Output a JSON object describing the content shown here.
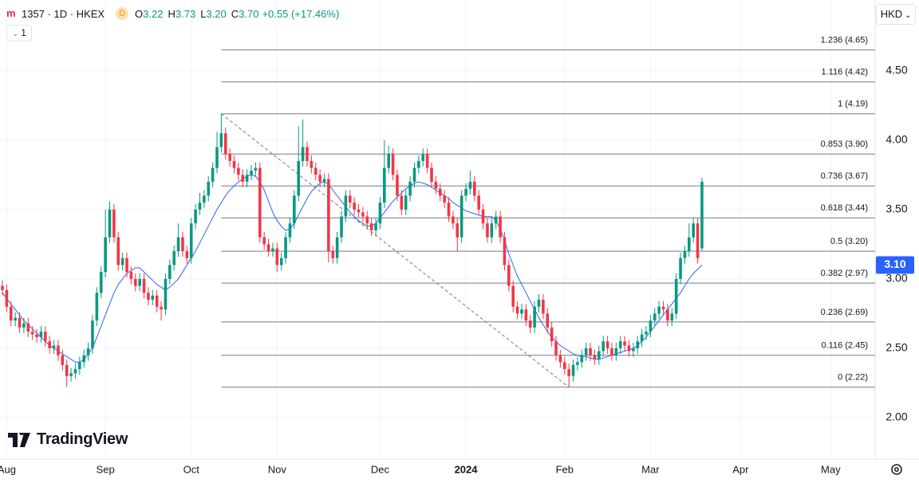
{
  "header": {
    "symbol": "1357 · 1D · HKEX",
    "badge": "D",
    "o_key": "O",
    "open": "3.22",
    "h_key": "H",
    "high": "3.73",
    "l_key": "L",
    "low": "3.20",
    "c_key": "C",
    "close": "3.70",
    "change": "+0.55 (+17.46%)",
    "indicator_count": "1",
    "currency": "HKD",
    "logo": "TradingView"
  },
  "chart_data": {
    "type": "candlestick",
    "up_color": "#089981",
    "down_color": "#f23645",
    "ylim": [
      1.736,
      5.01
    ],
    "yticks": [
      {
        "value": 2,
        "label": "2.00"
      },
      {
        "value": 2.5,
        "label": "2.50"
      },
      {
        "value": 3,
        "label": "3.00"
      },
      {
        "value": 3.5,
        "label": "3.50"
      },
      {
        "value": 4,
        "label": "4.00"
      },
      {
        "value": 4.5,
        "label": "4.50"
      }
    ],
    "grid": true,
    "last_value_label": {
      "value": 3.1,
      "label": "3.10"
    },
    "fib_levels": [
      {
        "value": 4.65,
        "label": "1.236 (4.65)"
      },
      {
        "value": 4.42,
        "label": "1.116 (4.42)"
      },
      {
        "value": 4.19,
        "label": "1 (4.19)"
      },
      {
        "value": 3.9,
        "label": "0.853 (3.90)"
      },
      {
        "value": 3.67,
        "label": "0.736 (3.67)"
      },
      {
        "value": 3.44,
        "label": "0.618 (3.44)"
      },
      {
        "value": 3.2,
        "label": "0.5 (3.20)"
      },
      {
        "value": 2.97,
        "label": "0.382 (2.97)"
      },
      {
        "value": 2.69,
        "label": "0.236 (2.69)"
      },
      {
        "value": 2.45,
        "label": "0.116 (2.45)"
      },
      {
        "value": 2.22,
        "label": "0 (2.22)"
      }
    ],
    "fib_color": "#787b86",
    "categories": [
      null,
      "Aug",
      null,
      null,
      null,
      null,
      null,
      null,
      null,
      null,
      null,
      null,
      null,
      null,
      null,
      null,
      null,
      null,
      null,
      null,
      null,
      null,
      null,
      null,
      "Sep",
      null,
      null,
      null,
      null,
      null,
      null,
      null,
      null,
      null,
      null,
      null,
      null,
      null,
      null,
      null,
      null,
      null,
      null,
      null,
      "Oct",
      null,
      null,
      null,
      null,
      null,
      null,
      null,
      null,
      null,
      null,
      null,
      null,
      null,
      null,
      null,
      null,
      null,
      null,
      null,
      "Nov",
      null,
      null,
      null,
      null,
      null,
      null,
      null,
      null,
      null,
      null,
      null,
      null,
      null,
      null,
      null,
      null,
      null,
      null,
      null,
      null,
      null,
      null,
      null,
      "Dec",
      null,
      null,
      null,
      null,
      null,
      null,
      null,
      null,
      null,
      null,
      null,
      null,
      null,
      null,
      null,
      null,
      null,
      null,
      null,
      "2024",
      null,
      null,
      null,
      null,
      null,
      null,
      null,
      null,
      null,
      null,
      null,
      null,
      null,
      null,
      null,
      null,
      null,
      null,
      null,
      null,
      null,
      null,
      "Feb",
      null,
      null,
      null,
      null,
      null,
      null,
      null,
      null,
      null,
      null,
      null,
      null,
      null,
      null,
      null,
      null,
      null,
      null,
      null,
      "Mar",
      null,
      null,
      null,
      null,
      null,
      null,
      null,
      null,
      null,
      null,
      null,
      null,
      null,
      null,
      null,
      null,
      null,
      null,
      null,
      null,
      "Apr",
      null,
      null,
      null,
      null,
      null,
      null,
      null,
      null,
      null,
      null,
      null,
      null,
      null,
      null,
      null,
      null,
      null,
      null,
      null,
      null,
      "May",
      null,
      null,
      null,
      null,
      null,
      null,
      null,
      null,
      null
    ],
    "candles": [
      [
        2.95,
        2.99,
        2.88,
        2.92
      ],
      [
        2.92,
        2.96,
        2.76,
        2.8
      ],
      [
        2.8,
        2.84,
        2.66,
        2.7
      ],
      [
        2.7,
        2.76,
        2.66,
        2.72
      ],
      [
        2.72,
        2.76,
        2.61,
        2.65
      ],
      [
        2.65,
        2.72,
        2.61,
        2.68
      ],
      [
        2.68,
        2.72,
        2.58,
        2.62
      ],
      [
        2.62,
        2.66,
        2.56,
        2.6
      ],
      [
        2.6,
        2.64,
        2.54,
        2.58
      ],
      [
        2.58,
        2.66,
        2.54,
        2.62
      ],
      [
        2.62,
        2.66,
        2.51,
        2.55
      ],
      [
        2.55,
        2.59,
        2.46,
        2.5
      ],
      [
        2.5,
        2.56,
        2.46,
        2.52
      ],
      [
        2.52,
        2.56,
        2.41,
        2.45
      ],
      [
        2.45,
        2.49,
        2.34,
        2.38
      ],
      [
        2.38,
        2.42,
        2.22,
        2.3
      ],
      [
        2.3,
        2.36,
        2.26,
        2.32
      ],
      [
        2.32,
        2.39,
        2.28,
        2.35
      ],
      [
        2.35,
        2.44,
        2.31,
        2.4
      ],
      [
        2.4,
        2.49,
        2.36,
        2.45
      ],
      [
        2.45,
        2.54,
        2.41,
        2.5
      ],
      [
        2.5,
        2.74,
        2.46,
        2.7
      ],
      [
        2.7,
        2.94,
        2.66,
        2.9
      ],
      [
        2.9,
        3.09,
        2.86,
        3.05
      ],
      [
        3.05,
        3.5,
        3.01,
        3.3
      ],
      [
        3.3,
        3.56,
        3.26,
        3.5
      ],
      [
        3.5,
        3.54,
        3.26,
        3.3
      ],
      [
        3.3,
        3.34,
        3.06,
        3.1
      ],
      [
        3.1,
        3.19,
        3.06,
        3.15
      ],
      [
        3.15,
        3.19,
        3.01,
        3.05
      ],
      [
        3.05,
        3.09,
        2.96,
        3.0
      ],
      [
        3.0,
        3.04,
        2.91,
        2.95
      ],
      [
        2.95,
        3.04,
        2.91,
        3.0
      ],
      [
        3.0,
        3.04,
        2.86,
        2.9
      ],
      [
        2.9,
        2.94,
        2.81,
        2.85
      ],
      [
        2.85,
        2.92,
        2.81,
        2.88
      ],
      [
        2.88,
        2.92,
        2.76,
        2.8
      ],
      [
        2.8,
        2.84,
        2.7,
        2.78
      ],
      [
        2.78,
        3.04,
        2.74,
        3.0
      ],
      [
        3.0,
        3.14,
        2.96,
        3.1
      ],
      [
        3.1,
        3.24,
        3.06,
        3.2
      ],
      [
        3.2,
        3.4,
        3.16,
        3.3
      ],
      [
        3.3,
        3.34,
        3.16,
        3.2
      ],
      [
        3.2,
        3.24,
        3.11,
        3.15
      ],
      [
        3.15,
        3.44,
        3.11,
        3.4
      ],
      [
        3.4,
        3.54,
        3.36,
        3.5
      ],
      [
        3.5,
        3.62,
        3.46,
        3.55
      ],
      [
        3.55,
        3.64,
        3.51,
        3.6
      ],
      [
        3.6,
        3.74,
        3.56,
        3.7
      ],
      [
        3.7,
        3.84,
        3.66,
        3.8
      ],
      [
        3.8,
        4.06,
        3.76,
        3.95
      ],
      [
        3.95,
        4.19,
        3.91,
        4.05
      ],
      [
        4.05,
        4.09,
        3.86,
        3.9
      ],
      [
        3.9,
        3.94,
        3.81,
        3.85
      ],
      [
        3.85,
        3.89,
        3.76,
        3.8
      ],
      [
        3.8,
        3.84,
        3.71,
        3.75
      ],
      [
        3.75,
        3.79,
        3.66,
        3.7
      ],
      [
        3.7,
        3.79,
        3.66,
        3.75
      ],
      [
        3.75,
        3.82,
        3.71,
        3.78
      ],
      [
        3.78,
        3.84,
        3.74,
        3.8
      ],
      [
        3.8,
        3.84,
        3.26,
        3.3
      ],
      [
        3.3,
        3.34,
        3.21,
        3.25
      ],
      [
        3.25,
        3.29,
        3.16,
        3.2
      ],
      [
        3.2,
        3.26,
        3.16,
        3.22
      ],
      [
        3.22,
        3.26,
        3.05,
        3.1
      ],
      [
        3.1,
        3.19,
        3.06,
        3.15
      ],
      [
        3.15,
        3.34,
        3.11,
        3.3
      ],
      [
        3.3,
        3.44,
        3.26,
        3.4
      ],
      [
        3.4,
        3.64,
        3.36,
        3.6
      ],
      [
        3.6,
        4.1,
        3.56,
        3.85
      ],
      [
        3.85,
        4.15,
        3.81,
        3.95
      ],
      [
        3.95,
        3.99,
        3.81,
        3.85
      ],
      [
        3.85,
        3.89,
        3.76,
        3.8
      ],
      [
        3.8,
        3.84,
        3.71,
        3.75
      ],
      [
        3.75,
        3.79,
        3.66,
        3.7
      ],
      [
        3.7,
        3.76,
        3.66,
        3.72
      ],
      [
        3.72,
        3.76,
        3.12,
        3.2
      ],
      [
        3.2,
        3.24,
        3.11,
        3.15
      ],
      [
        3.15,
        3.34,
        3.11,
        3.3
      ],
      [
        3.3,
        3.49,
        3.26,
        3.45
      ],
      [
        3.45,
        3.64,
        3.41,
        3.6
      ],
      [
        3.6,
        3.64,
        3.51,
        3.55
      ],
      [
        3.55,
        3.59,
        3.46,
        3.5
      ],
      [
        3.5,
        3.54,
        3.44,
        3.48
      ],
      [
        3.48,
        3.52,
        3.41,
        3.45
      ],
      [
        3.45,
        3.49,
        3.36,
        3.4
      ],
      [
        3.4,
        3.44,
        3.31,
        3.35
      ],
      [
        3.35,
        3.44,
        3.31,
        3.4
      ],
      [
        3.4,
        3.59,
        3.36,
        3.55
      ],
      [
        3.55,
        4.0,
        3.51,
        3.8
      ],
      [
        3.8,
        3.96,
        3.76,
        3.9
      ],
      [
        3.9,
        3.94,
        3.71,
        3.75
      ],
      [
        3.75,
        3.79,
        3.56,
        3.6
      ],
      [
        3.6,
        3.64,
        3.46,
        3.5
      ],
      [
        3.5,
        3.64,
        3.46,
        3.6
      ],
      [
        3.6,
        3.74,
        3.56,
        3.7
      ],
      [
        3.7,
        3.84,
        3.66,
        3.8
      ],
      [
        3.8,
        3.89,
        3.76,
        3.85
      ],
      [
        3.85,
        3.94,
        3.81,
        3.9
      ],
      [
        3.9,
        3.94,
        3.76,
        3.8
      ],
      [
        3.8,
        3.84,
        3.66,
        3.7
      ],
      [
        3.7,
        3.74,
        3.61,
        3.65
      ],
      [
        3.65,
        3.69,
        3.56,
        3.6
      ],
      [
        3.6,
        3.64,
        3.51,
        3.55
      ],
      [
        3.55,
        3.59,
        3.41,
        3.45
      ],
      [
        3.45,
        3.49,
        3.36,
        3.4
      ],
      [
        3.4,
        3.44,
        3.2,
        3.3
      ],
      [
        3.3,
        3.64,
        3.26,
        3.6
      ],
      [
        3.6,
        3.69,
        3.56,
        3.65
      ],
      [
        3.65,
        3.78,
        3.61,
        3.7
      ],
      [
        3.7,
        3.74,
        3.56,
        3.6
      ],
      [
        3.6,
        3.64,
        3.46,
        3.5
      ],
      [
        3.5,
        3.54,
        3.36,
        3.4
      ],
      [
        3.4,
        3.44,
        3.26,
        3.3
      ],
      [
        3.3,
        3.44,
        3.26,
        3.4
      ],
      [
        3.4,
        3.49,
        3.36,
        3.45
      ],
      [
        3.45,
        3.49,
        3.26,
        3.3
      ],
      [
        3.3,
        3.34,
        3.06,
        3.1
      ],
      [
        3.1,
        3.14,
        2.91,
        2.95
      ],
      [
        2.95,
        2.99,
        2.76,
        2.8
      ],
      [
        2.8,
        2.84,
        2.71,
        2.75
      ],
      [
        2.75,
        2.82,
        2.71,
        2.78
      ],
      [
        2.78,
        2.82,
        2.66,
        2.7
      ],
      [
        2.7,
        2.74,
        2.61,
        2.65
      ],
      [
        2.65,
        2.84,
        2.61,
        2.8
      ],
      [
        2.8,
        2.89,
        2.76,
        2.85
      ],
      [
        2.85,
        2.89,
        2.71,
        2.75
      ],
      [
        2.75,
        2.79,
        2.61,
        2.65
      ],
      [
        2.65,
        2.69,
        2.51,
        2.55
      ],
      [
        2.55,
        2.59,
        2.41,
        2.45
      ],
      [
        2.45,
        2.49,
        2.36,
        2.4
      ],
      [
        2.4,
        2.44,
        2.31,
        2.35
      ],
      [
        2.35,
        2.39,
        2.22,
        2.3
      ],
      [
        2.3,
        2.42,
        2.26,
        2.38
      ],
      [
        2.38,
        2.44,
        2.34,
        2.4
      ],
      [
        2.4,
        2.49,
        2.36,
        2.45
      ],
      [
        2.45,
        2.54,
        2.41,
        2.5
      ],
      [
        2.5,
        2.54,
        2.41,
        2.45
      ],
      [
        2.45,
        2.49,
        2.38,
        2.42
      ],
      [
        2.42,
        2.52,
        2.38,
        2.48
      ],
      [
        2.48,
        2.59,
        2.44,
        2.55
      ],
      [
        2.55,
        2.59,
        2.46,
        2.5
      ],
      [
        2.5,
        2.54,
        2.41,
        2.45
      ],
      [
        2.45,
        2.54,
        2.41,
        2.5
      ],
      [
        2.5,
        2.59,
        2.46,
        2.55
      ],
      [
        2.55,
        2.59,
        2.48,
        2.52
      ],
      [
        2.52,
        2.56,
        2.44,
        2.48
      ],
      [
        2.48,
        2.54,
        2.44,
        2.5
      ],
      [
        2.5,
        2.59,
        2.46,
        2.55
      ],
      [
        2.55,
        2.64,
        2.51,
        2.6
      ],
      [
        2.6,
        2.66,
        2.56,
        2.62
      ],
      [
        2.62,
        2.74,
        2.58,
        2.7
      ],
      [
        2.7,
        2.79,
        2.66,
        2.75
      ],
      [
        2.75,
        2.84,
        2.71,
        2.8
      ],
      [
        2.8,
        2.84,
        2.74,
        2.78
      ],
      [
        2.78,
        2.82,
        2.66,
        2.7
      ],
      [
        2.7,
        2.79,
        2.66,
        2.75
      ],
      [
        2.75,
        3.04,
        2.71,
        3.0
      ],
      [
        3.0,
        3.19,
        2.96,
        3.15
      ],
      [
        3.15,
        3.24,
        3.11,
        3.2
      ],
      [
        3.2,
        3.4,
        3.16,
        3.3
      ],
      [
        3.3,
        3.44,
        3.26,
        3.4
      ],
      [
        3.4,
        3.44,
        3.11,
        3.15
      ],
      [
        3.22,
        3.73,
        3.2,
        3.7
      ],
      null,
      null,
      null,
      null,
      null,
      null,
      null,
      null,
      null,
      null,
      null,
      null,
      null,
      null,
      null,
      null,
      null,
      null,
      null,
      null,
      null,
      null,
      null,
      null,
      null,
      null,
      null,
      null,
      null,
      null,
      null,
      null,
      null,
      null,
      null,
      null,
      null,
      null,
      null
    ],
    "moving_average": {
      "color": "#2962ff",
      "values": [
        2.9,
        2.86,
        2.82,
        2.78,
        2.74,
        2.7,
        2.67,
        2.64,
        2.61,
        2.58,
        2.55,
        2.52,
        2.5,
        2.48,
        2.46,
        2.44,
        2.42,
        2.4,
        2.4,
        2.42,
        2.46,
        2.5,
        2.58,
        2.66,
        2.74,
        2.82,
        2.9,
        2.96,
        3.0,
        3.04,
        3.06,
        3.08,
        3.08,
        3.05,
        3.02,
        2.99,
        2.96,
        2.94,
        2.92,
        2.94,
        2.97,
        3.0,
        3.05,
        3.1,
        3.15,
        3.2,
        3.26,
        3.32,
        3.38,
        3.44,
        3.5,
        3.55,
        3.6,
        3.64,
        3.67,
        3.7,
        3.72,
        3.74,
        3.75,
        3.74,
        3.7,
        3.64,
        3.56,
        3.48,
        3.42,
        3.38,
        3.35,
        3.36,
        3.4,
        3.46,
        3.52,
        3.58,
        3.63,
        3.66,
        3.69,
        3.7,
        3.68,
        3.64,
        3.6,
        3.56,
        3.52,
        3.48,
        3.45,
        3.42,
        3.4,
        3.38,
        3.38,
        3.4,
        3.44,
        3.48,
        3.52,
        3.56,
        3.59,
        3.62,
        3.65,
        3.67,
        3.69,
        3.7,
        3.69,
        3.68,
        3.66,
        3.64,
        3.62,
        3.6,
        3.58,
        3.55,
        3.53,
        3.51,
        3.49,
        3.48,
        3.47,
        3.46,
        3.45,
        3.45,
        3.45,
        3.42,
        3.36,
        3.28,
        3.18,
        3.1,
        3.02,
        2.96,
        2.9,
        2.84,
        2.78,
        2.72,
        2.67,
        2.62,
        2.58,
        2.55,
        2.52,
        2.5,
        2.48,
        2.46,
        2.45,
        2.44,
        2.44,
        2.43,
        2.42,
        2.42,
        2.43,
        2.44,
        2.45,
        2.46,
        2.47,
        2.48,
        2.49,
        2.5,
        2.52,
        2.55,
        2.58,
        2.62,
        2.66,
        2.7,
        2.74,
        2.78,
        2.82,
        2.86,
        2.9,
        2.95,
        3.0,
        3.04,
        3.07,
        3.1,
        null,
        null,
        null,
        null,
        null,
        null,
        null,
        null,
        null,
        null,
        null,
        null,
        null,
        null,
        null,
        null,
        null,
        null,
        null,
        null,
        null,
        null,
        null,
        null,
        null,
        null,
        null,
        null,
        null,
        null,
        null,
        null,
        null,
        null,
        null,
        null,
        null,
        null,
        null
      ]
    }
  }
}
